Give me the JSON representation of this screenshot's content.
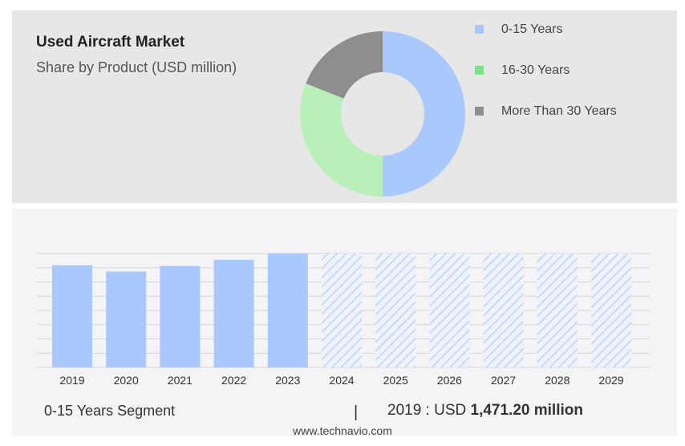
{
  "header": {
    "title": "Used Aircraft Market",
    "subtitle": "Share by Product (USD million)"
  },
  "chart_data": [
    {
      "type": "pie",
      "variant": "donut",
      "legend_position": "right",
      "slices": [
        {
          "label": "0-15 Years",
          "value": 50,
          "color": "#a9c8fb"
        },
        {
          "label": "16-30 Years",
          "value": 31,
          "color": "#b9f0ba"
        },
        {
          "label": "More Than 30 Years",
          "value": 19,
          "color": "#8e8e8e"
        }
      ]
    },
    {
      "type": "bar",
      "categories": [
        "2019",
        "2020",
        "2021",
        "2022",
        "2023",
        "2024",
        "2025",
        "2026",
        "2027",
        "2028",
        "2029"
      ],
      "values": [
        1471.2,
        1380,
        1460,
        1550,
        1640,
        1640,
        1640,
        1640,
        1640,
        1640,
        1640
      ],
      "forecast_from": "2024",
      "forecast_style": "hatched",
      "color": "#a9c8fb",
      "grid": true
    }
  ],
  "footer": {
    "segment_label": "0-15 Years Segment",
    "separator": "|",
    "stat_prefix": "2019 : USD",
    "stat_value": "1,471.20 million",
    "source": "www.technavio.com"
  }
}
